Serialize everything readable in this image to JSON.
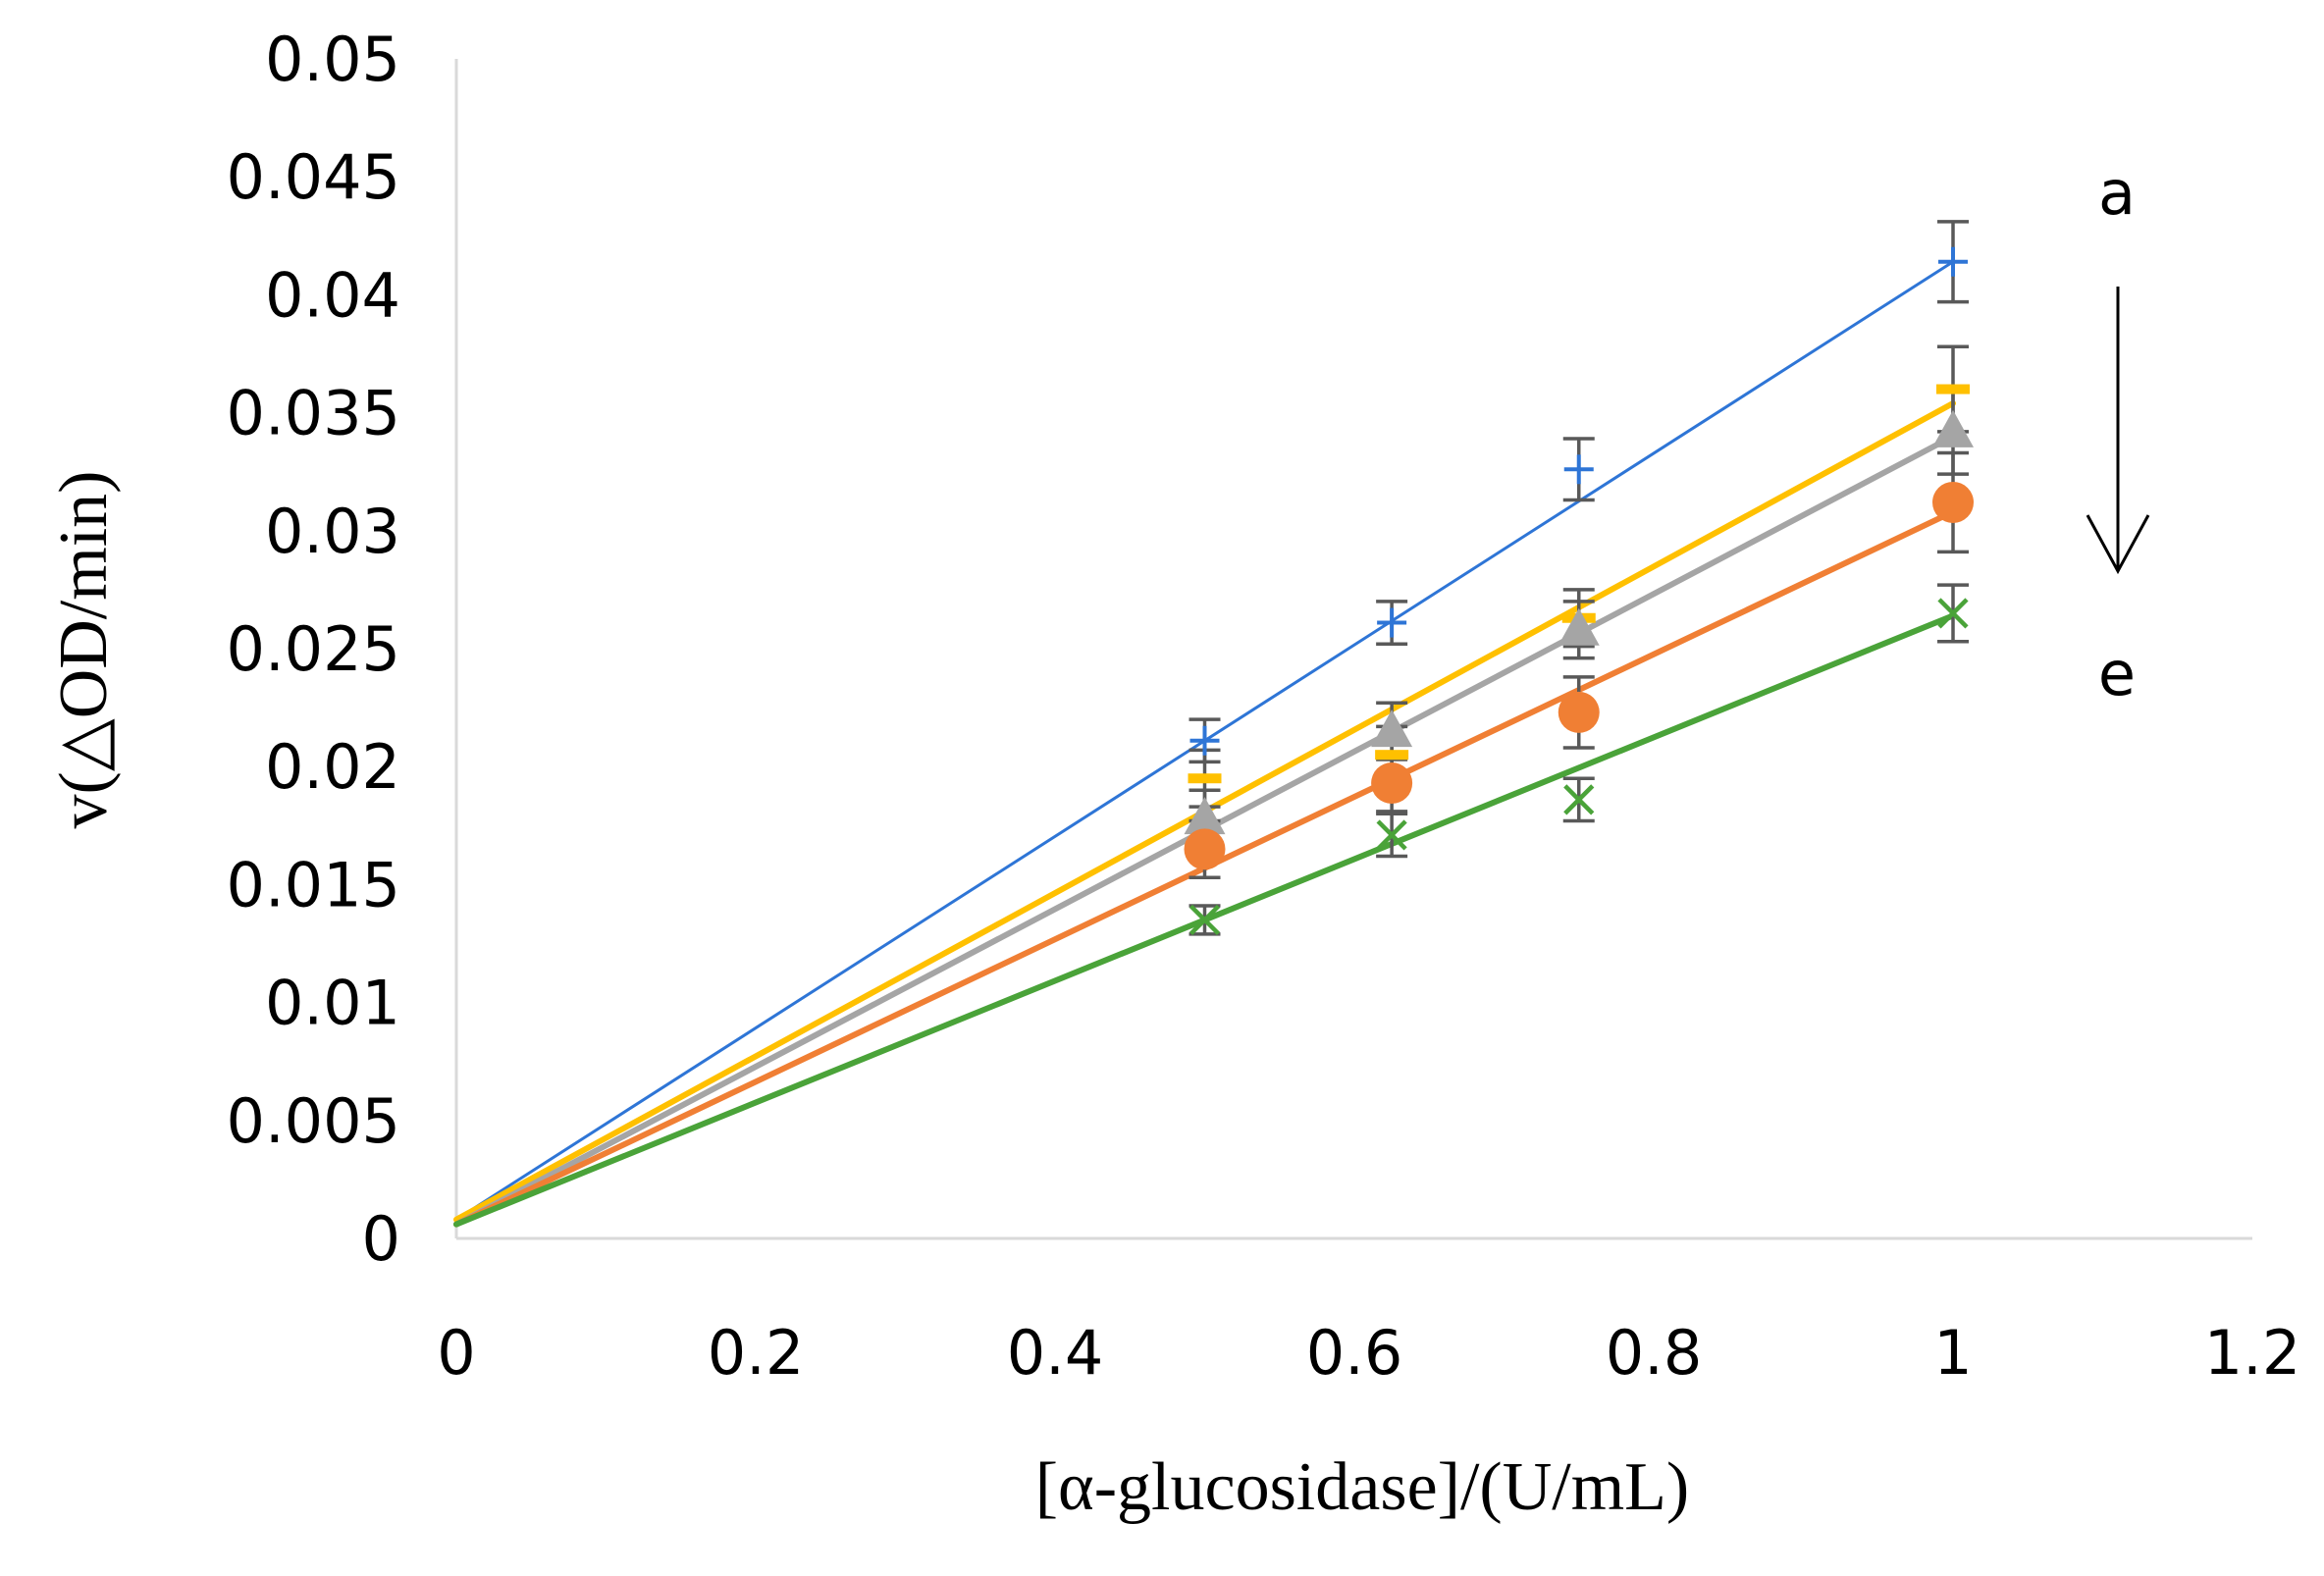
{
  "chart_data": {
    "type": "scatter",
    "title": "",
    "xlabel": "[α-glucosidase]/(U/mL)",
    "ylabel": "v(△OD/min)",
    "xlim": [
      0,
      1.2
    ],
    "ylim": [
      0,
      0.05
    ],
    "x_ticks": [
      "0",
      "0.2",
      "0.4",
      "0.6",
      "0.8",
      "1",
      "1.2"
    ],
    "y_ticks": [
      "0",
      "0.005",
      "0.01",
      "0.015",
      "0.02",
      "0.025",
      "0.03",
      "0.035",
      "0.04",
      "0.045",
      "0.05"
    ],
    "grid": false,
    "legend": "none",
    "annotations": {
      "top": "a",
      "bottom": "e"
    },
    "series": [
      {
        "marker": "plus",
        "color": "#2e75d6",
        "x": [
          0.5,
          0.625,
          0.75,
          1.0
        ],
        "y": [
          0.0211,
          0.0261,
          0.0326,
          0.0414
        ],
        "err": [
          0.0009,
          0.0009,
          0.0013,
          0.0017
        ],
        "fit": {
          "intercept": 0.0008,
          "slope": 0.0406
        }
      },
      {
        "marker": "dash",
        "color": "#ffc000",
        "x": [
          0.5,
          0.625,
          0.75,
          1.0
        ],
        "y": [
          0.0195,
          0.0205,
          0.0263,
          0.036
        ],
        "err": [
          0.0012,
          0.0012,
          0.0012,
          0.0018
        ],
        "fit": {
          "intercept": 0.0008,
          "slope": 0.0346
        }
      },
      {
        "marker": "triangle",
        "color": "#a5a5a5",
        "x": [
          0.5,
          0.625,
          0.75,
          1.0
        ],
        "y": [
          0.0178,
          0.0215,
          0.0258,
          0.0342
        ],
        "err": [
          0.0012,
          0.0012,
          0.0012,
          0.0018
        ],
        "fit": {
          "intercept": 0.0006,
          "slope": 0.0334
        }
      },
      {
        "marker": "circle",
        "color": "#f07f34",
        "x": [
          0.5,
          0.625,
          0.75,
          1.0
        ],
        "y": [
          0.0165,
          0.0193,
          0.0223,
          0.0312
        ],
        "err": [
          0.0012,
          0.0012,
          0.0015,
          0.0021
        ],
        "fit": {
          "intercept": 0.0006,
          "slope": 0.0302
        }
      },
      {
        "marker": "x",
        "color": "#4aa339",
        "x": [
          0.5,
          0.625,
          0.75,
          1.0
        ],
        "y": [
          0.0135,
          0.0171,
          0.0186,
          0.0265
        ],
        "err": [
          0.0006,
          0.0009,
          0.0009,
          0.0012
        ],
        "fit": {
          "intercept": 0.0006,
          "slope": 0.0258
        }
      }
    ]
  }
}
